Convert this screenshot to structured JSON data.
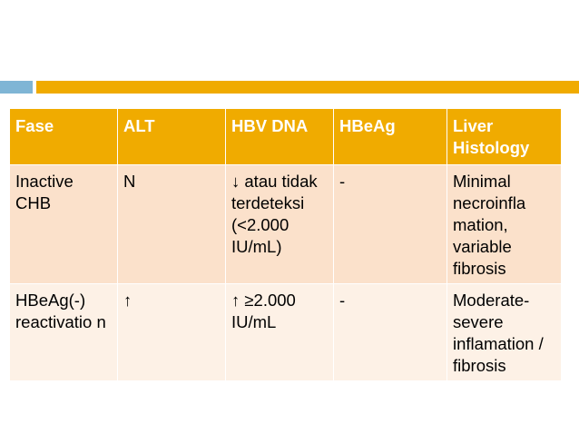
{
  "colors": {
    "accent_orange": "#f0ab00",
    "accent_blue": "#7fb5d5",
    "row_a": "#fbe1cb",
    "row_b": "#fdf1e6"
  },
  "table": {
    "headers": [
      "Fase",
      "ALT",
      "HBV DNA",
      "HBeAg",
      "Liver Histology"
    ],
    "rows": [
      [
        "Inactive CHB",
        "N",
        "↓ atau tidak terdeteksi (<2.000 IU/mL)",
        "-",
        "Minimal necroinfla mation, variable fibrosis"
      ],
      [
        "HBeAg(-) reactivatio n",
        "↑",
        "↑ ≥2.000 IU/mL",
        "-",
        "Moderate- severe inflamation / fibrosis"
      ]
    ]
  }
}
